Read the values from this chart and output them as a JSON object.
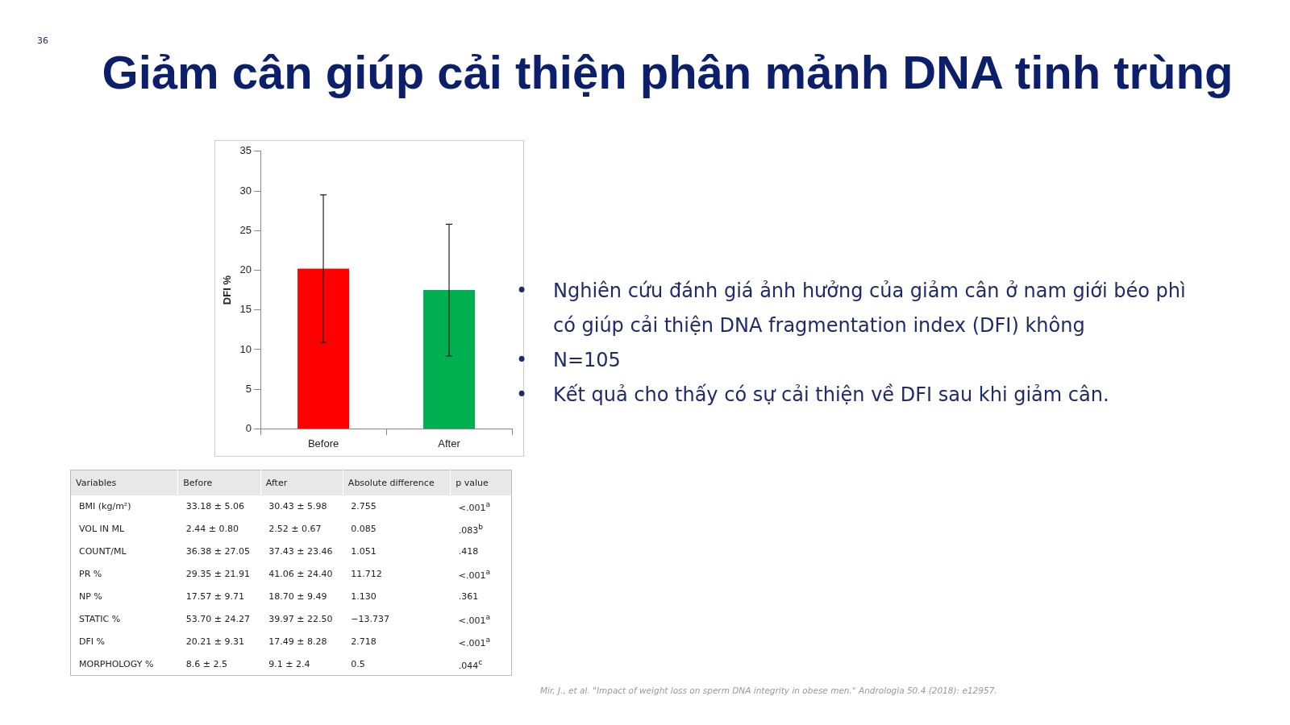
{
  "chart_data": [
    {
      "type": "bar",
      "title": "Giảm cân giúp cải thiện phân mảnh DNA tinh trùng",
      "ylabel": "DFI %",
      "categories": [
        "Before",
        "After"
      ],
      "values": [
        20.2,
        17.5
      ],
      "colors": [
        "#ff0000",
        "#00b050"
      ],
      "errors": [
        9.3,
        8.3
      ],
      "ylim": [
        0,
        35
      ],
      "yticks": [
        0,
        5,
        10,
        15,
        20,
        25,
        30,
        35
      ],
      "grid": false,
      "legend": false,
      "annotations": [
        "• Nghiên cứu đánh giá ảnh hưởng của giảm cân ở nam giới béo phì có giúp cải thiện DNA fragmentation index (DFI) không",
        "• N=105",
        "• Kết quả cho thấy có sự cải thiện về DFI sau khi giảm cân.",
        "Mir, J., et al. \"Impact of weight loss on sperm DNA integrity in obese men.\" Andrologia 50.4 (2018): e12957.",
        "36"
      ]
    },
    {
      "type": "other",
      "categories": [
        "Variables",
        "Before",
        "After",
        "Absolute difference",
        "p value"
      ],
      "y_categories": [
        "BMI (kg/m²)",
        "VOL IN ML",
        "COUNT/ML",
        "PR %",
        "NP %",
        "STATIC %",
        "DFI %",
        "MORPHOLOGY %"
      ],
      "cell_labels": [
        [
          "33.18 ± 5.06",
          "30.43 ± 5.98",
          "2.755",
          "<.001$^{a}$"
        ],
        [
          "2.44 ± 0.80",
          "2.52 ± 0.67",
          "0.085",
          ".083$^{b}$"
        ],
        [
          "36.38 ± 27.05",
          "37.43 ± 23.46",
          "1.051",
          ".418"
        ],
        [
          "29.35 ± 21.91",
          "41.06 ± 24.40",
          "11.712",
          "<.001$^{a}$"
        ],
        [
          "17.57 ± 9.71",
          "18.70 ± 9.49",
          "1.130",
          ".361"
        ],
        [
          "53.70 ± 24.27",
          "39.97 ± 22.50",
          "−13.737",
          "<.001$^{a}$"
        ],
        [
          "20.21 ± 9.31",
          "17.49 ± 8.28",
          "2.718",
          "<.001$^{a}$"
        ],
        [
          "8.6 ± 2.5",
          "9.1 ± 2.4",
          "0.5",
          ".044$^{c}$"
        ]
      ]
    }
  ]
}
